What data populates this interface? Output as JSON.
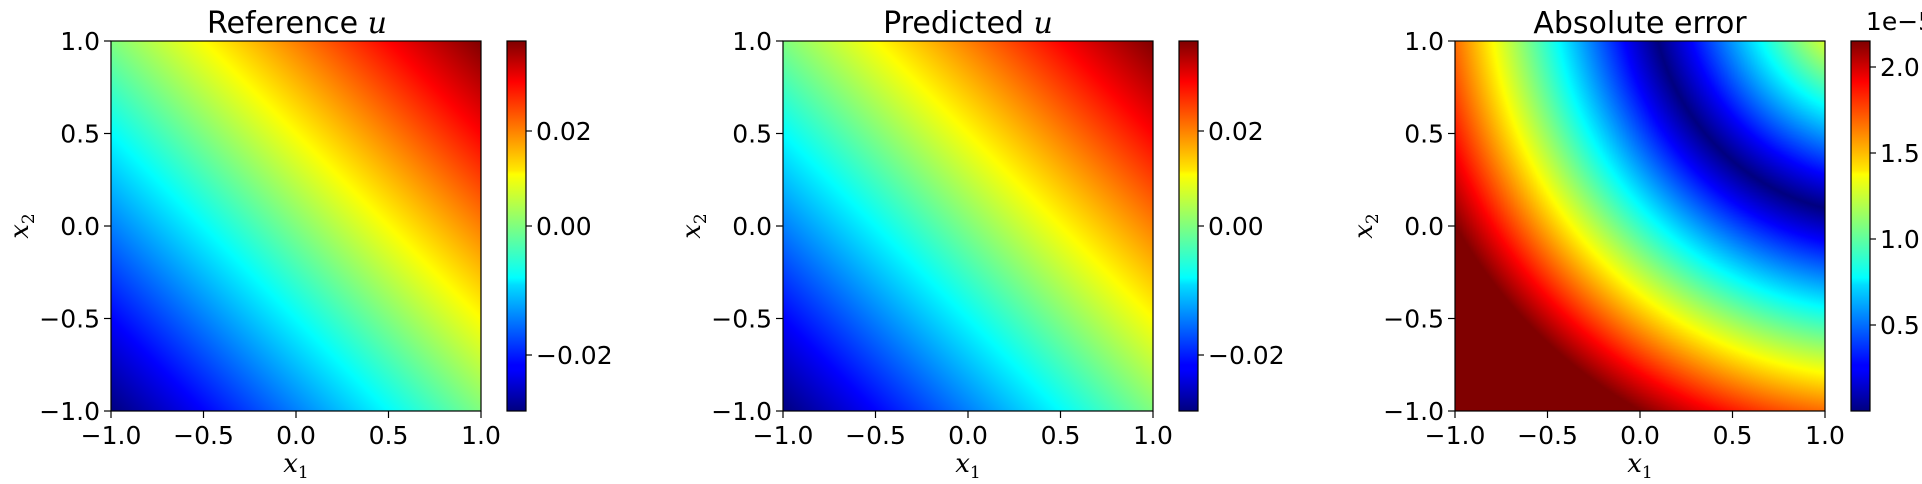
{
  "chart_data": [
    {
      "type": "heatmap",
      "title": "Reference ",
      "title_var": "u",
      "xlabel": "x",
      "xlabel_sub": "1",
      "ylabel": "x",
      "ylabel_sub": "2",
      "xlim": [
        -1.0,
        1.0
      ],
      "ylim": [
        -1.0,
        1.0
      ],
      "x_ticks": [
        "−1.0",
        "−0.5",
        "0.0",
        "0.5",
        "1.0"
      ],
      "y_ticks": [
        "−1.0",
        "−0.5",
        "0.0",
        "0.5",
        "1.0"
      ],
      "colormap": "jet",
      "colorbar": {
        "vmin": -0.038,
        "vmax": 0.038,
        "ticks": [
          -0.02,
          0.0,
          0.02
        ],
        "tick_labels": [
          "−0.02",
          "0.00",
          "0.02"
        ],
        "offset_label": ""
      },
      "field": "u(x1,x2) ≈ 0.019·(x1 + x2)"
    },
    {
      "type": "heatmap",
      "title": "Predicted ",
      "title_var": "u",
      "xlabel": "x",
      "xlabel_sub": "1",
      "ylabel": "x",
      "ylabel_sub": "2",
      "xlim": [
        -1.0,
        1.0
      ],
      "ylim": [
        -1.0,
        1.0
      ],
      "x_ticks": [
        "−1.0",
        "−0.5",
        "0.0",
        "0.5",
        "1.0"
      ],
      "y_ticks": [
        "−1.0",
        "−0.5",
        "0.0",
        "0.5",
        "1.0"
      ],
      "colormap": "jet",
      "colorbar": {
        "vmin": -0.038,
        "vmax": 0.038,
        "ticks": [
          -0.02,
          0.0,
          0.02
        ],
        "tick_labels": [
          "−0.02",
          "0.00",
          "0.02"
        ],
        "offset_label": ""
      },
      "field": "u(x1,x2) ≈ 0.019·(x1 + x2)"
    },
    {
      "type": "heatmap",
      "title": "Absolute error",
      "title_var": "",
      "xlabel": "x",
      "xlabel_sub": "1",
      "ylabel": "x",
      "ylabel_sub": "2",
      "xlim": [
        -1.0,
        1.0
      ],
      "ylim": [
        -1.0,
        1.0
      ],
      "x_ticks": [
        "−1.0",
        "−0.5",
        "0.0",
        "0.5",
        "1.0"
      ],
      "y_ticks": [
        "−1.0",
        "−0.5",
        "0.0",
        "0.5",
        "1.0"
      ],
      "colormap": "jet",
      "colorbar": {
        "vmin": 0.0,
        "vmax": 2.15,
        "ticks": [
          0.5,
          1.0,
          1.5,
          2.0
        ],
        "tick_labels": [
          "0.5",
          "1.0",
          "1.5",
          "2.0"
        ],
        "offset_label": "1e−5"
      },
      "field": "|e| ≈ 1e-5 · 2.15·|r − 1.24|/1.4, r = distance from (1.3, 1.3)"
    }
  ]
}
